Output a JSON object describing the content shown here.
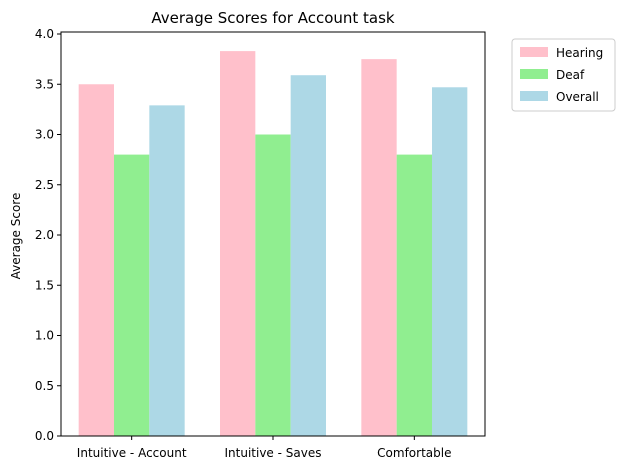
{
  "chart_data": {
    "type": "bar",
    "title": "Average Scores for Account task",
    "xlabel": "",
    "ylabel": "Average Score",
    "categories": [
      "Intuitive - Account",
      "Intuitive - Saves",
      "Comfortable"
    ],
    "series": [
      {
        "name": "Hearing",
        "color": "#ffc0cb",
        "values": [
          3.5,
          3.83,
          3.75
        ]
      },
      {
        "name": "Deaf",
        "color": "#90ee90",
        "values": [
          2.8,
          3.0,
          2.8
        ]
      },
      {
        "name": "Overall",
        "color": "#add8e6",
        "values": [
          3.29,
          3.59,
          3.47
        ]
      }
    ],
    "ylim": [
      0,
      4.02
    ],
    "yticks": [
      "0.0",
      "0.5",
      "1.0",
      "1.5",
      "2.0",
      "2.5",
      "3.0",
      "3.5",
      "4.0"
    ],
    "grid": false,
    "legend_position": "outside-top-right"
  }
}
